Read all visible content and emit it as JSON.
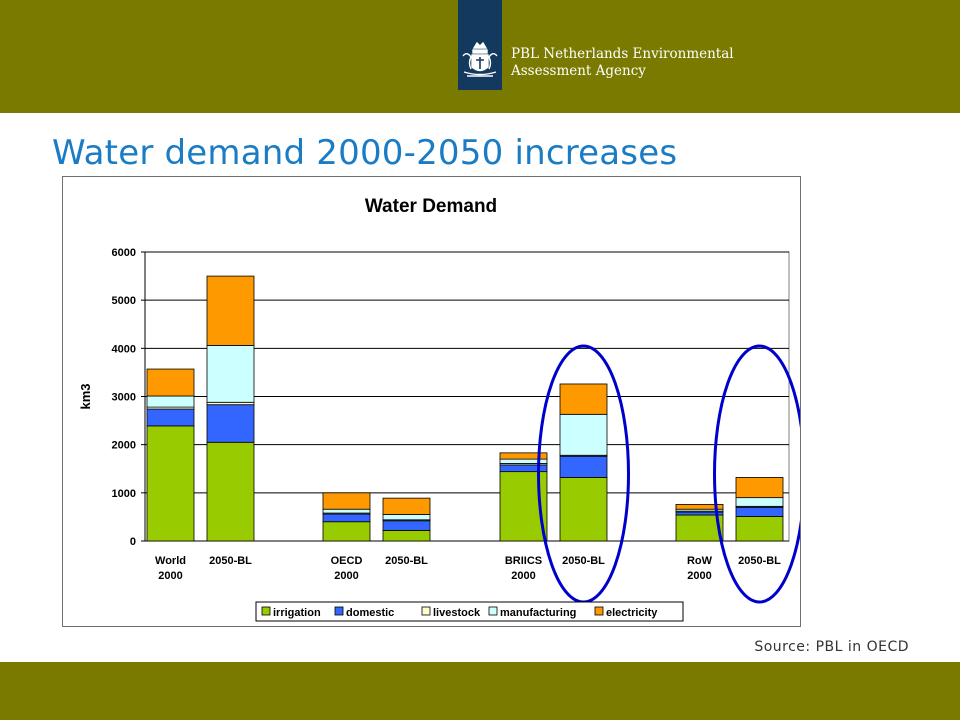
{
  "header": {
    "org_name": "PBL Netherlands Environmental\nAssessment Agency",
    "bar_color": "#7a7a00",
    "logo_color": "#14395e"
  },
  "slide": {
    "title": "Water demand 2000-2050 increases",
    "source": "Source: PBL in OECD"
  },
  "chart_data": {
    "type": "bar",
    "stacked": true,
    "title": "Water Demand",
    "ylabel": "km3",
    "ylim": [
      0,
      6000
    ],
    "yticks": [
      "0",
      "1000",
      "2000",
      "3000",
      "4000",
      "5000",
      "6000"
    ],
    "grid": true,
    "legend_position": "bottom",
    "categories": [
      [
        "World",
        "2000"
      ],
      [
        "2050-BL"
      ],
      [
        "OECD",
        "2000"
      ],
      [
        "2050-BL"
      ],
      [
        "BRIICS",
        "2000"
      ],
      [
        "2050-BL"
      ],
      [
        "RoW",
        "2000"
      ],
      [
        "2050-BL"
      ]
    ],
    "series": [
      {
        "name": "irrigation",
        "color": "#99cc00",
        "values": [
          2390,
          2050,
          400,
          220,
          1440,
          1320,
          540,
          510
        ]
      },
      {
        "name": "domestic",
        "color": "#3366ff",
        "values": [
          350,
          780,
          160,
          200,
          140,
          440,
          60,
          190
        ]
      },
      {
        "name": "livestock",
        "color": "#ffffcc",
        "values": [
          40,
          50,
          20,
          20,
          30,
          20,
          20,
          20
        ]
      },
      {
        "name": "manufacturing",
        "color": "#ccffff",
        "values": [
          230,
          1180,
          80,
          110,
          90,
          850,
          40,
          180
        ]
      },
      {
        "name": "electricity",
        "color": "#ff9900",
        "values": [
          560,
          1440,
          340,
          340,
          130,
          630,
          100,
          420
        ]
      }
    ],
    "highlighted_categories": [
      5,
      7
    ],
    "highlight_color": "#0000cc"
  }
}
